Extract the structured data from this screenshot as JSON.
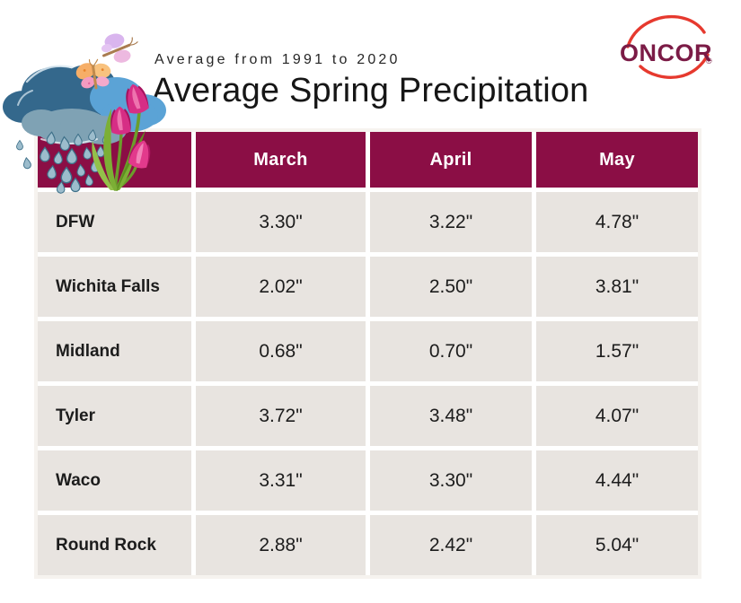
{
  "header": {
    "eyebrow": "Average from 1991 to 2020",
    "title": "Average Spring Precipitation"
  },
  "logo": {
    "brand": "ONCOR",
    "registered": "®"
  },
  "table": {
    "columns": [
      "March",
      "April",
      "May"
    ],
    "rows": [
      {
        "city": "DFW",
        "values": [
          "3.30\"",
          "3.22\"",
          "4.78\""
        ]
      },
      {
        "city": "Wichita Falls",
        "values": [
          "2.02\"",
          "2.50\"",
          "3.81\""
        ]
      },
      {
        "city": "Midland",
        "values": [
          "0.68\"",
          "0.70\"",
          "1.57\""
        ]
      },
      {
        "city": "Tyler",
        "values": [
          "3.72\"",
          "3.48\"",
          "4.07\""
        ]
      },
      {
        "city": "Waco",
        "values": [
          "3.31\"",
          "3.30\"",
          "4.44\""
        ]
      },
      {
        "city": "Round Rock",
        "values": [
          "2.88\"",
          "2.42\"",
          "5.04\""
        ]
      }
    ]
  },
  "colors": {
    "header_bg": "#8B0E45",
    "header_text": "#FFFFFF",
    "row_bg": "#E8E4E0",
    "cell_text": "#1C1C1C",
    "logo_maroon": "#7B1B46",
    "logo_red": "#E6392E"
  },
  "decoration": {
    "items": [
      "rain-cloud-icon",
      "raindrops-icon",
      "tulip-bouquet-icon",
      "butterfly-icon"
    ]
  },
  "chart_data": {
    "type": "table",
    "title": "Average Spring Precipitation",
    "subtitle": "Average from 1991 to 2020",
    "columns": [
      "March",
      "April",
      "May"
    ],
    "row_labels": [
      "DFW",
      "Wichita Falls",
      "Midland",
      "Tyler",
      "Waco",
      "Round Rock"
    ],
    "values_inches": [
      [
        3.3,
        3.22,
        4.78
      ],
      [
        2.02,
        2.5,
        3.81
      ],
      [
        0.68,
        0.7,
        1.57
      ],
      [
        3.72,
        3.48,
        4.07
      ],
      [
        3.31,
        3.3,
        4.44
      ],
      [
        2.88,
        2.42,
        5.04
      ]
    ],
    "unit": "inches"
  }
}
